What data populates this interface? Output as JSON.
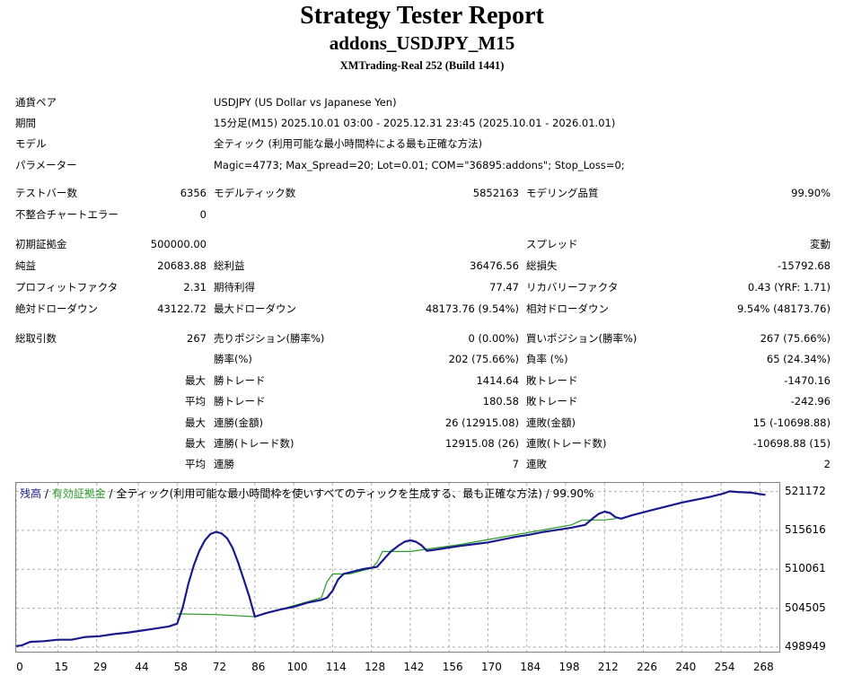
{
  "header": {
    "title": "Strategy Tester Report",
    "subtitle": "addons_USDJPY_M15",
    "server": "XMTrading-Real 252 (Build 1441)"
  },
  "info": [
    {
      "label": "通貨ペア",
      "value": "USDJPY (US Dollar vs Japanese Yen)"
    },
    {
      "label": "期間",
      "value": "15分足(M15) 2025.10.01 03:00 - 2025.12.31 23:45 (2025.10.01 - 2026.01.01)"
    },
    {
      "label": "モデル",
      "value": "全ティック (利用可能な最小時間枠による最も正確な方法)"
    },
    {
      "label": "パラメーター",
      "value": "Magic=4773; Max_Spread=20; Lot=0.01; COM=\"36895:addons\"; Stop_Loss=0;"
    }
  ],
  "stats": {
    "bars_label": "テストバー数",
    "bars": "6356",
    "ticks_label": "モデルティック数",
    "ticks": "5852163",
    "quality_label": "モデリング品質",
    "quality": "99.90%",
    "mismatch_label": "不整合チャートエラー",
    "mismatch": "0",
    "deposit_label": "初期証拠金",
    "deposit": "500000.00",
    "spread_label": "スプレッド",
    "spread": "変動",
    "net_label": "純益",
    "net": "20683.88",
    "gross_profit_label": "総利益",
    "gross_profit": "36476.56",
    "gross_loss_label": "総損失",
    "gross_loss": "-15792.68",
    "pf_label": "プロフィットファクタ",
    "pf": "2.31",
    "expected_label": "期待利得",
    "expected": "77.47",
    "recovery_label": "リカバリーファクタ",
    "recovery": "0.43 (YRF: 1.71)",
    "abs_dd_label": "絶対ドローダウン",
    "abs_dd": "43122.72",
    "max_dd_label": "最大ドローダウン",
    "max_dd": "48173.76 (9.54%)",
    "rel_dd_label": "相対ドローダウン",
    "rel_dd": "9.54% (48173.76)",
    "total_trades_label": "総取引数",
    "total_trades": "267",
    "short_label": "売りポジション(勝率%)",
    "short": "0 (0.00%)",
    "long_label": "買いポジション(勝率%)",
    "long": "267 (75.66%)",
    "win_pct_label": "勝率(%)",
    "win_pct": "202 (75.66%)",
    "loss_pct_label": "負率 (%)",
    "loss_pct": "65 (24.34%)",
    "max_word": "最大",
    "avg_word": "平均",
    "max_win_label": "勝トレード",
    "max_win": "1414.64",
    "max_loss_label": "敗トレード",
    "max_loss": "-1470.16",
    "avg_win_label": "勝トレード",
    "avg_win": "180.58",
    "avg_loss_label": "敗トレード",
    "avg_loss": "-242.96",
    "cons_win_money_label": "連勝(金額)",
    "cons_win_money": "26 (12915.08)",
    "cons_loss_money_label": "連敗(金額)",
    "cons_loss_money": "15 (-10698.88)",
    "cons_win_count_label": "連勝(トレード数)",
    "cons_win_count": "12915.08 (26)",
    "cons_loss_count_label": "連敗(トレード数)",
    "cons_loss_count": "-10698.88 (15)",
    "avg_cons_win_label": "連勝",
    "avg_cons_win": "7",
    "avg_cons_loss_label": "連敗",
    "avg_cons_loss": "2"
  },
  "chart_legend": {
    "balance": "残高",
    "sep1": " / ",
    "equity": "有効証拠金",
    "sep2": " / ",
    "rest": "全ティック(利用可能な最小時間枠を使いすべてのティックを生成する、最も正確な方法) / 99.90%"
  },
  "colors": {
    "balance": "#1a1a8c",
    "equity": "#2a9a2a",
    "grid": "#b0b0b0",
    "border": "#808080"
  },
  "chart_data": {
    "type": "line",
    "y_ticks": [
      521172,
      515616,
      510061,
      504505,
      498949
    ],
    "x_ticks": [
      0,
      15,
      29,
      44,
      58,
      72,
      86,
      100,
      114,
      128,
      142,
      156,
      170,
      184,
      198,
      212,
      226,
      240,
      254,
      268
    ],
    "xlim": [
      0,
      275
    ],
    "ylim": [
      498300,
      522400
    ],
    "grid": true,
    "series": [
      {
        "name": "残高",
        "color": "#1a1a8c",
        "x": [
          0,
          2,
          5,
          10,
          15,
          20,
          25,
          30,
          35,
          40,
          45,
          50,
          55,
          58,
          60,
          62,
          64,
          66,
          68,
          70,
          72,
          74,
          76,
          78,
          80,
          82,
          84,
          86,
          90,
          95,
          100,
          105,
          110,
          112,
          114,
          116,
          118,
          121,
          125,
          130,
          135,
          138,
          140,
          142,
          144,
          146,
          148,
          150,
          155,
          160,
          164,
          166,
          170,
          175,
          180,
          185,
          190,
          195,
          200,
          205,
          208,
          210,
          212,
          214,
          216,
          218,
          222,
          230,
          240,
          250,
          255,
          257,
          260,
          265,
          268,
          270
        ],
        "y": [
          499100,
          499200,
          499700,
          499800,
          500000,
          500000,
          500400,
          500500,
          500800,
          501000,
          501300,
          501600,
          501900,
          502300,
          504600,
          507900,
          510600,
          512700,
          514200,
          515100,
          515400,
          515200,
          514500,
          513100,
          511000,
          508600,
          506200,
          503300,
          503800,
          504300,
          504700,
          505300,
          505700,
          506000,
          507000,
          508600,
          509400,
          509700,
          510100,
          510400,
          512600,
          513500,
          514000,
          514200,
          514000,
          513500,
          512700,
          512800,
          513100,
          513400,
          513600,
          513700,
          513900,
          514300,
          514700,
          515000,
          515400,
          515700,
          516000,
          516400,
          517400,
          518000,
          518300,
          518100,
          517500,
          517300,
          517800,
          518600,
          519600,
          520400,
          520900,
          521200,
          521100,
          521000,
          520800,
          520700
        ]
      },
      {
        "name": "有効証拠金",
        "color": "#2a9a2a",
        "x": [
          58,
          72,
          86,
          110,
          112,
          114,
          120,
          128,
          130,
          132,
          142,
          160,
          200,
          204,
          212,
          216
        ],
        "y": [
          503700,
          503600,
          503300,
          506000,
          508300,
          509400,
          509400,
          510200,
          511000,
          512600,
          512600,
          513600,
          516400,
          517100,
          517100,
          517300
        ]
      }
    ]
  }
}
